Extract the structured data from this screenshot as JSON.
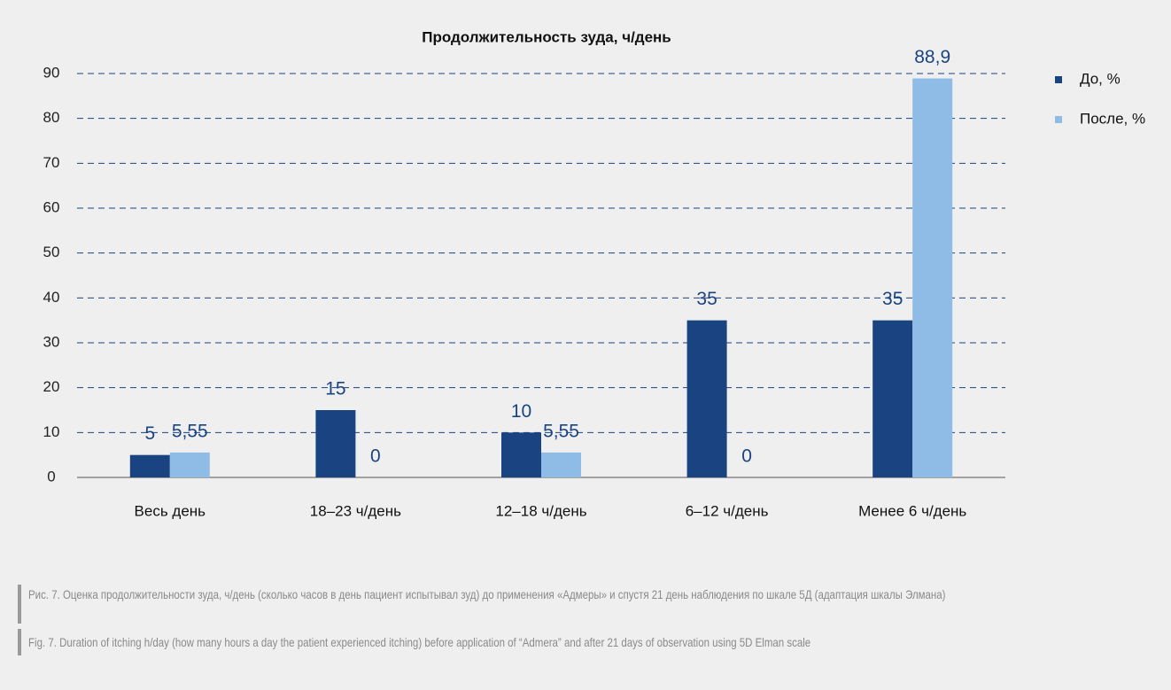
{
  "chart_data": {
    "type": "bar",
    "title": "Продолжительность зуда, ч/день",
    "categories": [
      "Весь день",
      "18–23 ч/день",
      "12–18 ч/день",
      "6–12 ч/день",
      "Менее 6 ч/день"
    ],
    "series": [
      {
        "name": "До, %",
        "color": "#1a4381",
        "values": [
          5,
          15,
          10,
          35,
          35
        ]
      },
      {
        "name": "После, %",
        "color": "#8fbce6",
        "values": [
          5.55,
          0,
          5.55,
          0,
          88.9
        ],
        "value_labels": [
          "5,55",
          "0",
          "5,55",
          "0",
          "88,9"
        ]
      }
    ],
    "ylim": [
      0,
      90
    ],
    "yticks": [
      0,
      10,
      20,
      30,
      40,
      50,
      60,
      70,
      80,
      90
    ],
    "grid": true,
    "legend": "right"
  },
  "caption": {
    "ru": "Рис. 7. Оценка продолжительности зуда, ч/день (сколько часов в день пациент испытывал зуд) до применения «Адмеры» и спустя 21 день наблюдения по шкале 5Д (адаптация шкалы Элмана)",
    "en": "Fig. 7. Duration of itching h/day (how many hours a day the patient experienced itching) before application of “Admera” and after 21 days of observation using 5D Elman scale"
  }
}
